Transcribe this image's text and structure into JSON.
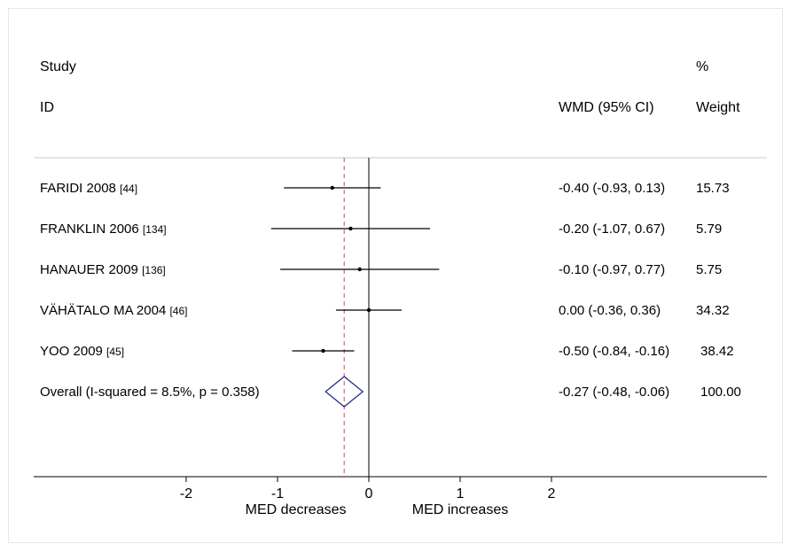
{
  "chart_data": {
    "type": "forest",
    "headers": {
      "study_line1": "Study",
      "study_line2": "ID",
      "effect": "WMD (95% CI)",
      "weight_line1": "%",
      "weight_line2": "Weight"
    },
    "studies": [
      {
        "name": "FARIDI 2008",
        "ref": "[44]",
        "est": -0.4,
        "lo": -0.93,
        "hi": 0.13,
        "ci_text": "-0.40 (-0.93, 0.13)",
        "weight": "15.73"
      },
      {
        "name": "FRANKLIN 2006",
        "ref": "[134]",
        "est": -0.2,
        "lo": -1.07,
        "hi": 0.67,
        "ci_text": "-0.20 (-1.07, 0.67)",
        "weight": "5.79"
      },
      {
        "name": "HANAUER 2009",
        "ref": "[136]",
        "est": -0.1,
        "lo": -0.97,
        "hi": 0.77,
        "ci_text": "-0.10 (-0.97, 0.77)",
        "weight": "5.75"
      },
      {
        "name": "VÄHÄTALO MA 2004",
        "ref": "[46]",
        "est": 0.0,
        "lo": -0.36,
        "hi": 0.36,
        "ci_text": "0.00 (-0.36, 0.36)",
        "weight": "34.32"
      },
      {
        "name": "YOO 2009 ",
        "ref": "[45]",
        "est": -0.5,
        "lo": -0.84,
        "hi": -0.16,
        "ci_text": "-0.50 (-0.84, -0.16)",
        "weight": "38.42"
      }
    ],
    "overall": {
      "label": "Overall  (I-squared = 8.5%, p = 0.358)",
      "est": -0.27,
      "lo": -0.48,
      "hi": -0.06,
      "ci_text": "-0.27 (-0.48, -0.06)",
      "weight": "100.00"
    },
    "x_ticks": [
      -2,
      -1,
      0,
      1,
      2
    ],
    "x_tick_labels": [
      "-2",
      "-1",
      "0",
      "1",
      "2"
    ],
    "xlim": [
      -2,
      2
    ],
    "xlabel_left": "MED decreases",
    "xlabel_right": "MED increases",
    "null_line": 0,
    "colors": {
      "diamond": "#2b2f8a",
      "overall_line": "#c0504d"
    }
  }
}
